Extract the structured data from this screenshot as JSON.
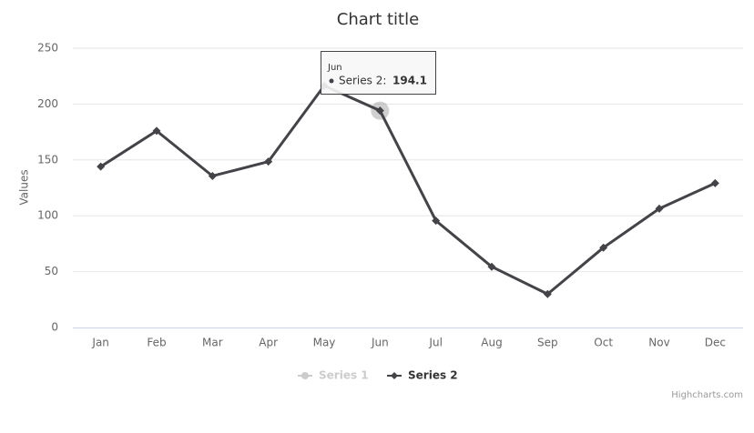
{
  "chart_data": {
    "type": "line",
    "title": "Chart title",
    "y_axis_label": "Values",
    "categories": [
      "Jan",
      "Feb",
      "Mar",
      "Apr",
      "May",
      "Jun",
      "Jul",
      "Aug",
      "Sep",
      "Oct",
      "Nov",
      "Dec"
    ],
    "series": [
      {
        "name": "Series 1",
        "color": "#cccccc",
        "visible": false,
        "values": [
          null,
          null,
          null,
          null,
          null,
          null,
          null,
          null,
          null,
          null,
          null,
          null
        ]
      },
      {
        "name": "Series 2",
        "color": "#434348",
        "visible": true,
        "values": [
          144.0,
          176.0,
          135.6,
          148.5,
          216.4,
          194.1,
          95.6,
          54.4,
          29.9,
          71.5,
          106.4,
          129.2
        ]
      }
    ],
    "ylim": [
      0,
      250
    ],
    "yticks": [
      0,
      50,
      100,
      150,
      200,
      250
    ],
    "grid": true,
    "legend": "bottom",
    "tooltip": {
      "title": "Jun",
      "label": "Series 2:",
      "value": "194.1"
    },
    "credits": "Highcharts.com"
  }
}
